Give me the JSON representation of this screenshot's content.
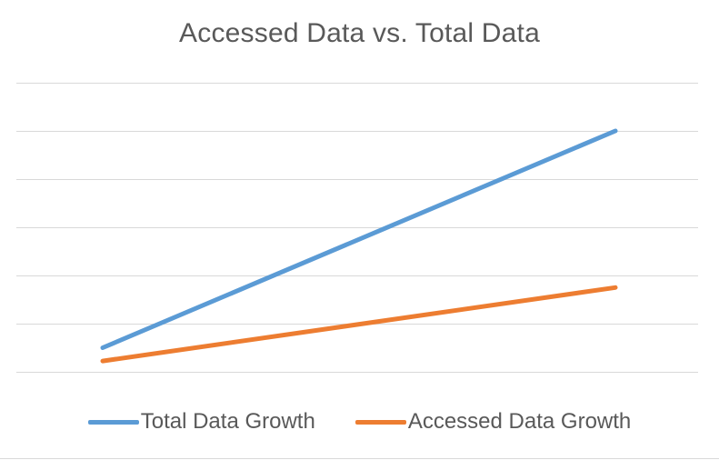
{
  "chart_data": {
    "type": "line",
    "title": "Accessed Data vs. Total Data",
    "xlabel": "",
    "ylabel": "",
    "categories": [
      "",
      ""
    ],
    "ylim": [
      0,
      12
    ],
    "gridlines": [
      0,
      2,
      4,
      6,
      8,
      10,
      12
    ],
    "grid": true,
    "legend_position": "bottom",
    "series": [
      {
        "name": "Total Data Growth",
        "color": "#5B9BD5",
        "values": [
          1,
          10
        ]
      },
      {
        "name": "Accessed Data Growth",
        "color": "#ED7D31",
        "values": [
          0.45,
          3.5
        ]
      }
    ]
  }
}
